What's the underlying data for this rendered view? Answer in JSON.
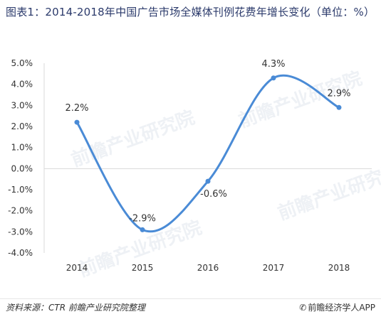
{
  "header": {
    "title": "图表1：2014-2018年中国广告市场全媒体刊例花费年增长变化（单位：%）"
  },
  "footer": {
    "source": "资料来源：CTR 前瞻产业研究院整理",
    "brand": "前瞻经济学人APP"
  },
  "watermark": {
    "text": "前瞻产业研究院"
  },
  "chart_data": {
    "type": "line",
    "categories": [
      "2014",
      "2015",
      "2016",
      "2017",
      "2018"
    ],
    "series": [
      {
        "values": [
          2.2,
          -2.9,
          -0.6,
          4.3,
          2.9
        ]
      }
    ],
    "data_labels": [
      "2.2%",
      "-2.9%",
      "-0.6%",
      "4.3%",
      "2.9%"
    ],
    "y_ticks": [
      "5.0%",
      "4.0%",
      "3.0%",
      "2.0%",
      "1.0%",
      "0.0%",
      "-1.0%",
      "-2.0%",
      "-3.0%",
      "-4.0%"
    ],
    "y_tick_values": [
      5,
      4,
      3,
      2,
      1,
      0,
      -1,
      -2,
      -3,
      -4
    ],
    "ylim": [
      -4,
      5
    ],
    "xlabel": "",
    "ylabel": "",
    "grid": false,
    "smooth": true,
    "line_color": "#4a8bd6"
  }
}
